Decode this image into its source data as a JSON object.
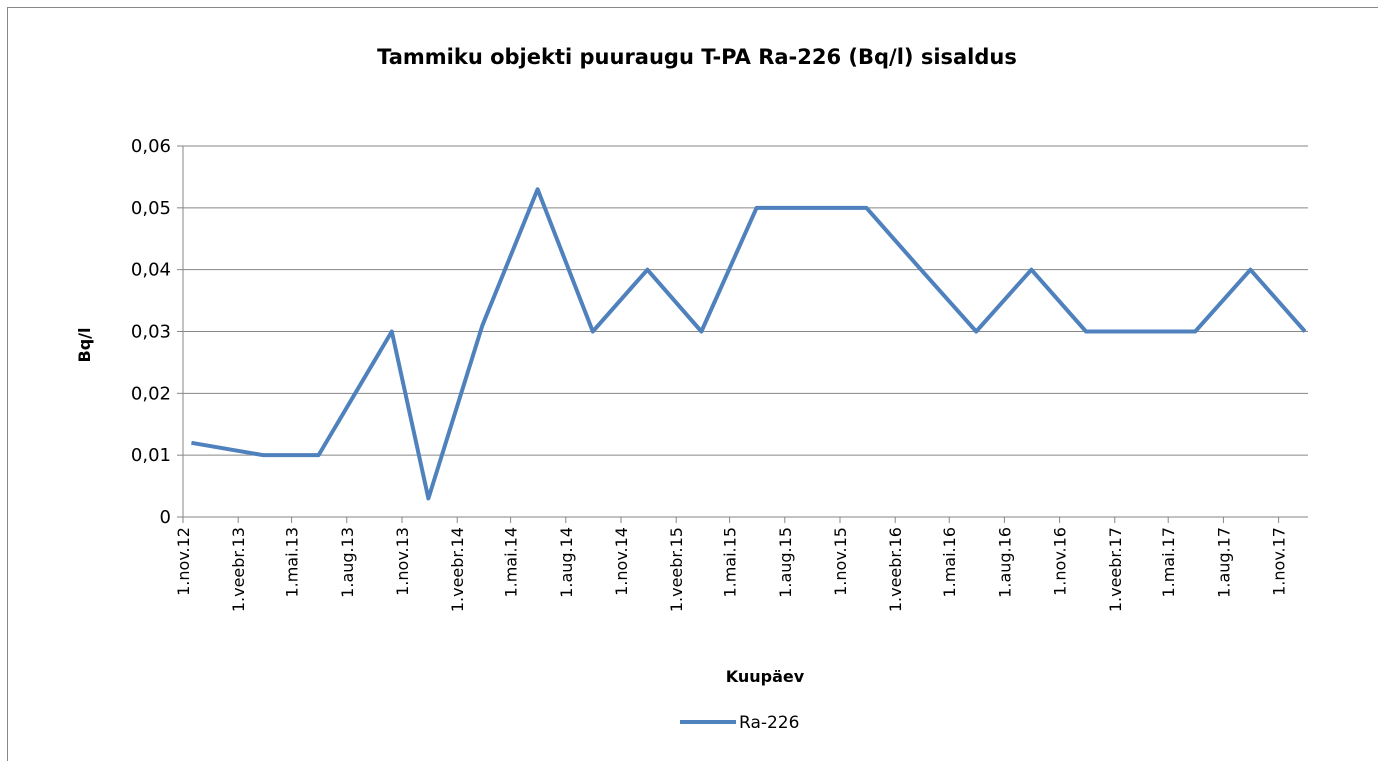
{
  "chart_data": {
    "type": "line",
    "title": "Tammiku objekti puuraugu T-PA Ra-226 (Bq/l) sisaldus",
    "x_label": "Kuupäev",
    "y_label": "Bq/l",
    "x": [
      "2012-11-15",
      "2013-03-15",
      "2013-06-15",
      "2013-10-15",
      "2013-12-15",
      "2014-03-15",
      "2014-06-15",
      "2014-09-15",
      "2014-12-15",
      "2015-03-15",
      "2015-06-15",
      "2015-09-15",
      "2015-12-15",
      "2016-03-15",
      "2016-06-15",
      "2016-09-15",
      "2016-12-15",
      "2017-03-15",
      "2017-06-15",
      "2017-09-15",
      "2017-12-15"
    ],
    "series": [
      {
        "name": "Ra-226",
        "color": "#4f81bd",
        "values": [
          0.012,
          0.01,
          0.01,
          0.03,
          0.003,
          0.031,
          0.053,
          0.03,
          0.04,
          0.03,
          0.05,
          0.05,
          0.05,
          0.04,
          0.03,
          0.04,
          0.03,
          0.03,
          0.03,
          0.04,
          0.03
        ]
      }
    ],
    "xlim": [
      "2012-11-01",
      "2017-12-20"
    ],
    "xticks": [
      {
        "value": "2012-11-01",
        "label": "1.nov.12"
      },
      {
        "value": "2013-02-01",
        "label": "1.veebr.13"
      },
      {
        "value": "2013-05-01",
        "label": "1.mai.13"
      },
      {
        "value": "2013-08-01",
        "label": "1.aug.13"
      },
      {
        "value": "2013-11-01",
        "label": "1.nov.13"
      },
      {
        "value": "2014-02-01",
        "label": "1.veebr.14"
      },
      {
        "value": "2014-05-01",
        "label": "1.mai.14"
      },
      {
        "value": "2014-08-01",
        "label": "1.aug.14"
      },
      {
        "value": "2014-11-01",
        "label": "1.nov.14"
      },
      {
        "value": "2015-02-01",
        "label": "1.veebr.15"
      },
      {
        "value": "2015-05-01",
        "label": "1.mai.15"
      },
      {
        "value": "2015-08-01",
        "label": "1.aug.15"
      },
      {
        "value": "2015-11-01",
        "label": "1.nov.15"
      },
      {
        "value": "2016-02-01",
        "label": "1.veebr.16"
      },
      {
        "value": "2016-05-01",
        "label": "1.mai.16"
      },
      {
        "value": "2016-08-01",
        "label": "1.aug.16"
      },
      {
        "value": "2016-11-01",
        "label": "1.nov.16"
      },
      {
        "value": "2017-02-01",
        "label": "1.veebr.17"
      },
      {
        "value": "2017-05-01",
        "label": "1.mai.17"
      },
      {
        "value": "2017-08-01",
        "label": "1.aug.17"
      },
      {
        "value": "2017-11-01",
        "label": "1.nov.17"
      }
    ],
    "ylim": [
      0,
      0.06
    ],
    "yticks": [
      0,
      {
        "value": 0.01,
        "label": "0,01"
      },
      {
        "value": 0.02,
        "label": "0,02"
      },
      {
        "value": 0.03,
        "label": "0,03"
      },
      {
        "value": 0.04,
        "label": "0,04"
      },
      {
        "value": 0.05,
        "label": "0,05"
      },
      {
        "value": 0.06,
        "label": "0,06"
      }
    ],
    "grid": true,
    "legend": "bottom"
  }
}
